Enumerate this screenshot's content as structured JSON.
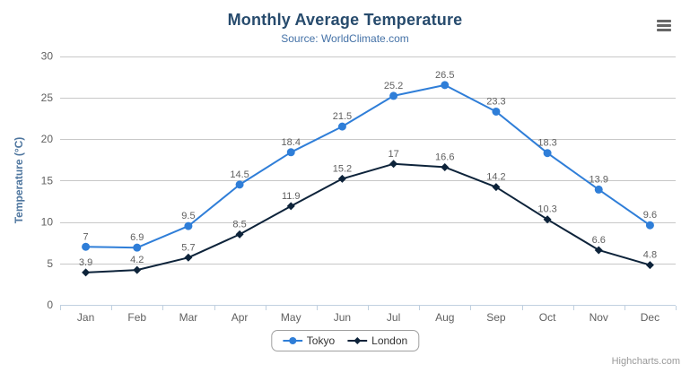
{
  "chart": {
    "credits": "Highcharts.com",
    "context_menu_icon": "hamburger-icon"
  },
  "colors": {
    "title": "#274b6d",
    "subtitle": "#4572a7",
    "axis_title": "#4d759e",
    "tick_label": "#606060",
    "data_label": "#606060",
    "grid_line": "#c8c8c8",
    "axis_line": "#c0d0e0",
    "legend_text": "#333333",
    "credits_text": "#999999",
    "menu_icon": "#666666",
    "background": "#ffffff"
  },
  "chart_data": {
    "type": "line",
    "title": "Monthly Average Temperature",
    "subtitle": "Source: WorldClimate.com",
    "categories": [
      "Jan",
      "Feb",
      "Mar",
      "Apr",
      "May",
      "Jun",
      "Jul",
      "Aug",
      "Sep",
      "Oct",
      "Nov",
      "Dec"
    ],
    "series": [
      {
        "name": "Tokyo",
        "color": "#2f7ed8",
        "marker": "circle",
        "values": [
          7,
          6.9,
          9.5,
          14.5,
          18.4,
          21.5,
          25.2,
          26.5,
          23.3,
          18.3,
          13.9,
          9.6
        ]
      },
      {
        "name": "London",
        "color": "#0d233a",
        "marker": "diamond",
        "values": [
          3.9,
          4.2,
          5.7,
          8.5,
          11.9,
          15.2,
          17,
          16.6,
          14.2,
          10.3,
          6.6,
          4.8
        ]
      }
    ],
    "xlabel": "",
    "ylabel": "Temperature (°C)",
    "ylim": [
      0,
      30
    ],
    "ytick_interval": 5,
    "yticks": [
      0,
      5,
      10,
      15,
      20,
      25,
      30
    ],
    "grid": true,
    "data_labels": true,
    "legend_position": "bottom-center"
  }
}
